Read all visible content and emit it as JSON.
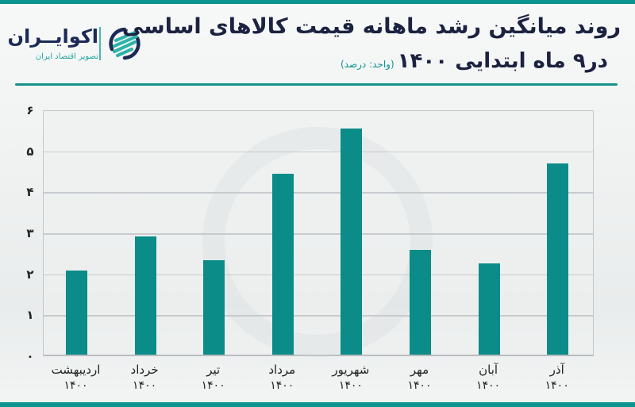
{
  "header": {
    "title_line1": "روند میانگین رشد ماهانه قیمت کالاهای اساسی",
    "title_line2": "در۹ ماه ابتدایی ۱۴۰۰",
    "unit_note": "(واحد: درصد)"
  },
  "logo": {
    "name": "اکوایــران",
    "tagline": "تصویر اقتصاد ایران",
    "icon": "ecoiran-swirl-icon"
  },
  "colors": {
    "accent": "#0d9490",
    "bar": "#0b8c88",
    "title": "#1c2240",
    "logo_text": "#1c2a55"
  },
  "chart_data": {
    "type": "bar",
    "title": "روند میانگین رشد ماهانه قیمت کالاهای اساسی در۹ ماه ابتدایی ۱۴۰۰",
    "subtitle": "(واحد: درصد)",
    "xlabel": "",
    "ylabel": "",
    "ylim": [
      0,
      6
    ],
    "yticks": [
      "۰",
      "۱",
      "۲",
      "۳",
      "۴",
      "۵",
      "۶"
    ],
    "grid": true,
    "legend": "none",
    "categories": [
      "اردیبهشت ۱۴۰۰",
      "خرداد ۱۴۰۰",
      "تیر ۱۴۰۰",
      "مرداد ۱۴۰۰",
      "شهریور ۱۴۰۰",
      "مهر ۱۴۰۰",
      "آبان ۱۴۰۰",
      "آذر ۱۴۰۰"
    ],
    "months": [
      "اردیبهشت",
      "خرداد",
      "تیر",
      "مرداد",
      "شهریور",
      "مهر",
      "آبان",
      "آذر"
    ],
    "year_label": "۱۴۰۰",
    "values": [
      2.05,
      2.88,
      2.3,
      4.42,
      5.51,
      2.55,
      2.23,
      4.66
    ]
  }
}
